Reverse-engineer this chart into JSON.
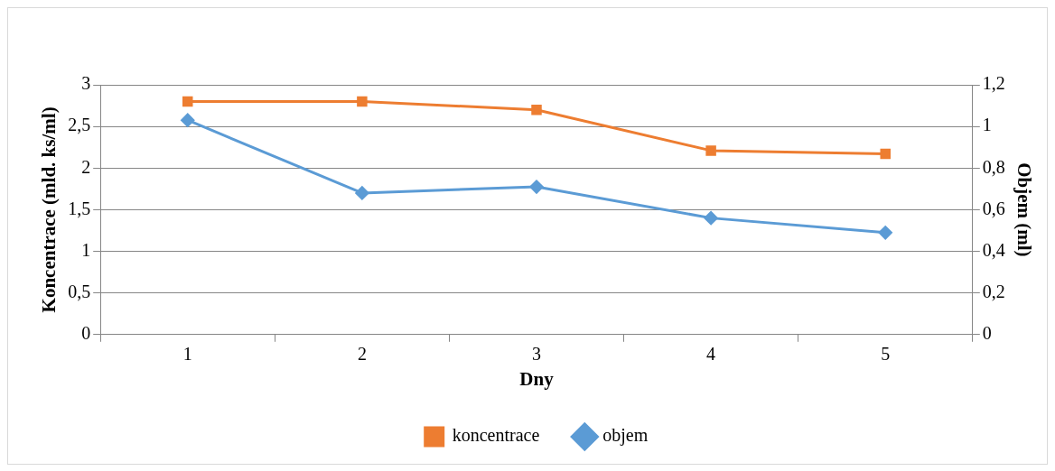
{
  "chart_data": {
    "type": "line",
    "xlabel": "Dny",
    "ylabel": "Koncentrace (mld. ks/ml)",
    "y2label": "Objem (ml)",
    "categories": [
      "1",
      "2",
      "3",
      "4",
      "5"
    ],
    "series": [
      {
        "name": "koncentrace",
        "color": "#ed7d31",
        "values": [
          2.8,
          2.8,
          2.7,
          2.21,
          2.17
        ],
        "marker": "square"
      },
      {
        "name": "objem",
        "color": "#5b9bd5",
        "values": [
          1.03,
          0.68,
          0.71,
          0.56,
          0.49
        ],
        "marker": "diamond",
        "axis": "y2"
      }
    ],
    "ylim": [
      0,
      3
    ],
    "yticks": [
      0,
      {
        "value": 0.5,
        "label": "0,5"
      },
      1,
      {
        "value": 1.5,
        "label": "1,5"
      },
      2,
      {
        "value": 2.5,
        "label": "2,5"
      },
      3
    ],
    "y2lim": [
      0,
      1.2
    ],
    "y2ticks": [
      0,
      {
        "value": 0.2,
        "label": "0,2"
      },
      {
        "value": 0.4,
        "label": "0,4"
      },
      {
        "value": 0.6,
        "label": "0,6"
      },
      {
        "value": 0.8,
        "label": "0,8"
      },
      1,
      {
        "value": 1.2,
        "label": "1,2"
      }
    ],
    "grid": "y",
    "legend": "bottom",
    "line_style": "solid"
  }
}
